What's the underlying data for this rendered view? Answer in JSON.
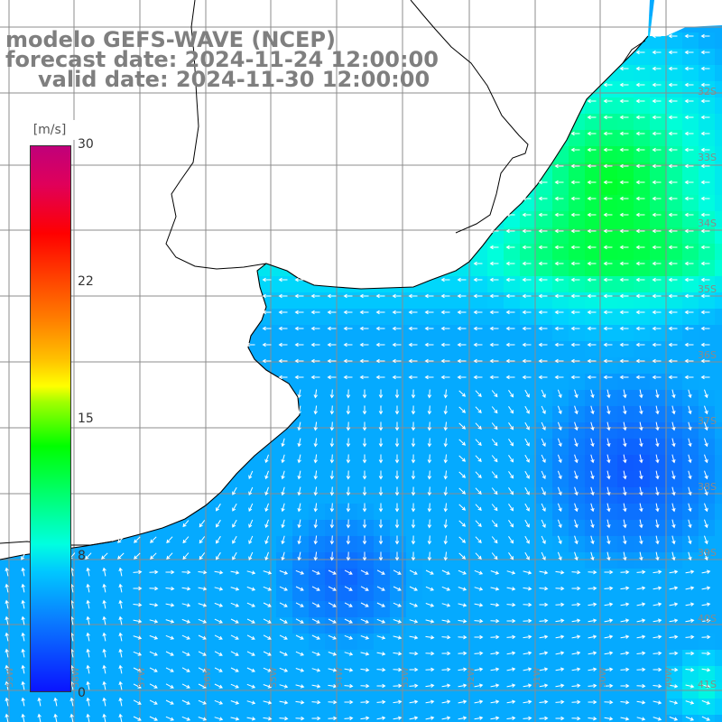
{
  "title": {
    "line1": "modelo GEFS-WAVE (NCEP)",
    "line2": "forecast date: 2024-11-24 12:00:00",
    "line3": "valid date: 2024-11-30 12:00:00"
  },
  "colorbar": {
    "unit": "[m/s]",
    "ticks": [
      "30",
      "22",
      "15",
      "8",
      "0"
    ],
    "range": [
      0,
      30
    ],
    "colors": [
      "#0a14ff",
      "#00c8ff",
      "#00ffe0",
      "#00ff00",
      "#ffff00",
      "#ff8000",
      "#ff0000",
      "#c0007a"
    ]
  },
  "map": {
    "latitude_labels": [
      "32S",
      "33S",
      "34S",
      "35S",
      "36S",
      "37S",
      "38S",
      "39S",
      "40S",
      "41S"
    ],
    "longitude_labels": [
      "59W",
      "58W",
      "57W",
      "56W",
      "55W",
      "54W",
      "53W",
      "52W",
      "51W",
      "50W",
      "49W"
    ],
    "land_color": "#ffffff",
    "coastline_color": "#000000",
    "grid_color": "#8c8c8c",
    "arrow_color": "#ffffff"
  }
}
